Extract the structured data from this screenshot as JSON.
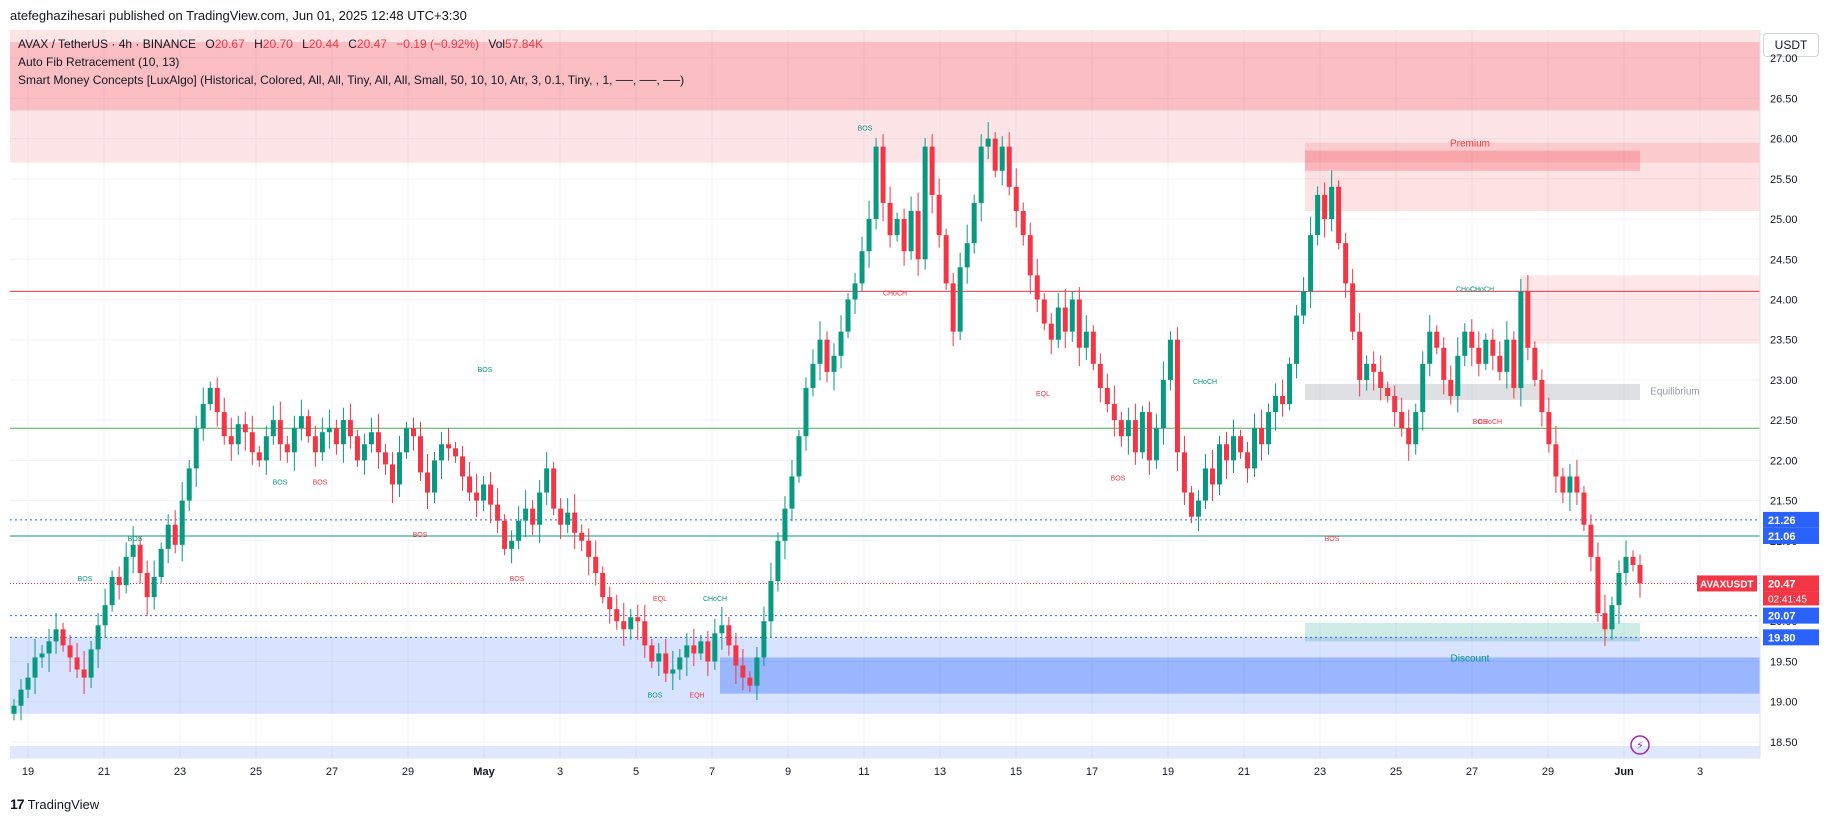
{
  "header": {
    "publisher": "atefeghazihesari published on TradingView.com, Jun 01, 2025 12:48 UTC+3:30"
  },
  "legend": {
    "symbol": "AVAX / TetherUS · 4h · BINANCE",
    "o_label": "O",
    "o": "20.67",
    "h_label": "H",
    "h": "20.70",
    "l_label": "L",
    "l": "20.44",
    "c_label": "C",
    "c": "20.47",
    "change": "−0.19 (−0.92%)",
    "vol_label": "Vol",
    "vol": "57.84K",
    "indicator1": "Auto Fib Retracement (10, 13)",
    "indicator2": "Smart Money Concepts [LuxAlgo] (Historical, Colored, All, All, Tiny, All, All, Small, 50, 10, 10, Atr, 3, 0.1, Tiny, , 1, ──, ──, ──)"
  },
  "currency": "USDT",
  "footer": {
    "brand": "TradingView"
  },
  "colors": {
    "up": "#089981",
    "down": "#f23645",
    "blue": "#2962ff",
    "premium": "#f23645",
    "discount": "#089981"
  },
  "chart_data": {
    "type": "candlestick",
    "symbol": "AVAXUSDT",
    "interval": "4h",
    "y_ticks": [
      "27.00",
      "26.50",
      "26.00",
      "25.50",
      "25.00",
      "24.50",
      "24.00",
      "23.50",
      "23.00",
      "22.50",
      "22.00",
      "21.50",
      "21.00",
      "20.50",
      "20.00",
      "19.50",
      "19.00",
      "18.50"
    ],
    "ylim": [
      18.3,
      27.35
    ],
    "x_ticks": [
      "19",
      "21",
      "23",
      "25",
      "27",
      "29",
      "May",
      "3",
      "5",
      "7",
      "9",
      "11",
      "13",
      "15",
      "17",
      "19",
      "21",
      "23",
      "25",
      "27",
      "29",
      "Jun",
      "3"
    ],
    "price_labels": [
      {
        "text": "21.26",
        "value": 21.26,
        "color": "#2962ff"
      },
      {
        "text": "21.06",
        "value": 21.06,
        "color": "#2962ff"
      },
      {
        "text": "20.47",
        "value": 20.47,
        "color": "#f23645"
      },
      {
        "text": "20.07",
        "value": 20.07,
        "color": "#2962ff"
      },
      {
        "text": "19.80",
        "value": 19.8,
        "color": "#2962ff"
      }
    ],
    "last_price_tag": "AVAXUSDT",
    "last_price": "20.47",
    "countdown": "02:41:45",
    "zone_labels": {
      "premium": "Premium",
      "equilibrium": "Equilibrium",
      "discount": "Discount"
    },
    "annotations": [
      "BOS",
      "BOS",
      "BOS",
      "BOS",
      "BOS",
      "BOS",
      "BOS",
      "BOS",
      "EQL",
      "CHoCH",
      "BOS",
      "EQH",
      "CHoCH",
      "EQL",
      "BOS",
      "CHoCH",
      "BOS",
      "CHoCH",
      "CHoCH",
      "BOS",
      "CHoCH"
    ],
    "closes": [
      18.95,
      19.15,
      19.3,
      19.55,
      19.6,
      19.75,
      19.9,
      19.7,
      19.55,
      19.4,
      19.3,
      19.65,
      19.95,
      20.2,
      20.55,
      20.45,
      20.8,
      20.95,
      20.6,
      20.3,
      20.55,
      20.9,
      21.2,
      20.95,
      21.5,
      21.9,
      22.4,
      22.7,
      22.9,
      22.6,
      22.3,
      22.2,
      22.45,
      22.35,
      22.1,
      22.0,
      22.3,
      22.5,
      22.2,
      22.1,
      22.4,
      22.55,
      22.3,
      22.1,
      22.35,
      22.4,
      22.2,
      22.5,
      22.3,
      22.0,
      22.2,
      22.35,
      22.1,
      21.95,
      21.7,
      22.1,
      22.4,
      22.3,
      21.85,
      21.6,
      22.0,
      22.2,
      22.15,
      22.05,
      21.8,
      21.6,
      21.5,
      21.7,
      21.45,
      21.25,
      20.9,
      21.0,
      21.25,
      21.4,
      21.2,
      21.6,
      21.9,
      21.4,
      21.2,
      21.35,
      21.1,
      21.0,
      20.8,
      20.6,
      20.3,
      20.15,
      20.0,
      19.9,
      20.05,
      20.0,
      19.7,
      19.5,
      19.6,
      19.35,
      19.4,
      19.55,
      19.7,
      19.6,
      19.75,
      19.5,
      19.85,
      19.95,
      19.7,
      19.45,
      19.3,
      19.2,
      19.55,
      20.0,
      20.5,
      21.0,
      21.4,
      21.8,
      22.3,
      22.9,
      23.2,
      23.5,
      23.1,
      23.3,
      23.6,
      24.0,
      24.2,
      24.6,
      25.0,
      25.9,
      25.2,
      24.8,
      25.0,
      24.6,
      25.1,
      24.5,
      25.9,
      25.3,
      24.8,
      24.2,
      23.6,
      24.4,
      24.7,
      25.2,
      25.9,
      26.0,
      25.6,
      25.9,
      25.4,
      25.1,
      24.8,
      24.3,
      24.0,
      23.7,
      23.5,
      23.9,
      23.6,
      24.0,
      23.4,
      23.6,
      23.2,
      22.9,
      22.7,
      22.5,
      22.3,
      22.5,
      22.1,
      22.6,
      22.0,
      22.4,
      23.0,
      23.5,
      22.1,
      21.6,
      21.3,
      21.5,
      21.9,
      21.7,
      22.2,
      22.0,
      22.3,
      22.1,
      21.9,
      22.4,
      22.2,
      22.6,
      22.8,
      22.7,
      23.2,
      23.8,
      24.1,
      24.8,
      25.3,
      25.0,
      25.4,
      24.7,
      24.2,
      23.6,
      23.0,
      23.2,
      23.1,
      22.9,
      22.8,
      22.6,
      22.4,
      22.2,
      22.6,
      23.2,
      23.6,
      23.4,
      23.0,
      22.8,
      23.3,
      23.6,
      23.4,
      23.2,
      23.5,
      23.3,
      23.1,
      23.5,
      22.9,
      24.1,
      23.4,
      23.0,
      22.6,
      22.2,
      21.8,
      21.6,
      21.8,
      21.6,
      21.2,
      20.8,
      20.1,
      19.9,
      20.2,
      20.6,
      20.8,
      20.7,
      20.47
    ]
  }
}
